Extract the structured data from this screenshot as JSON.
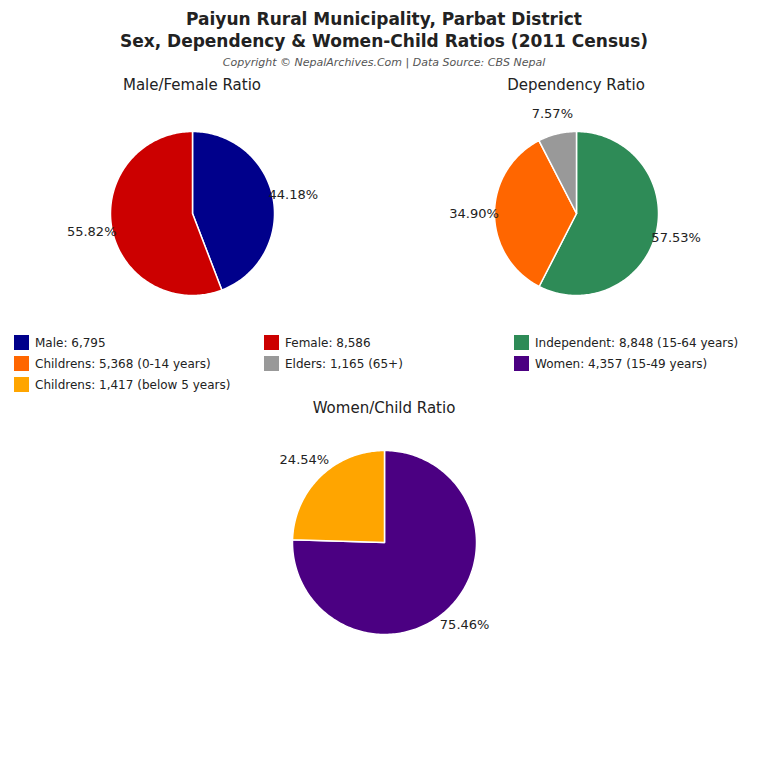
{
  "title": "Paiyun Rural Municipality, Parbat District\nSex, Dependency & Women-Child Ratios (2011 Census)",
  "subtitle": "Copyright © NepalArchives.Com | Data Source: CBS Nepal",
  "chart_data": [
    {
      "type": "pie",
      "title": "Male/Female Ratio",
      "categories": [
        "Male: 6,795",
        "Female: 8,586"
      ],
      "values": [
        44.18,
        55.82
      ],
      "value_labels": [
        "44.18%",
        "55.82%"
      ],
      "colors": [
        "#00008B",
        "#CC0000"
      ],
      "data_labels": true
    },
    {
      "type": "pie",
      "title": "Dependency Ratio",
      "categories": [
        "Independent: 8,848 (15-64 years)",
        "Childrens: 5,368 (0-14 years)",
        "Elders: 1,165 (65+)"
      ],
      "values": [
        57.53,
        34.9,
        7.57
      ],
      "value_labels": [
        "57.53%",
        "34.90%",
        "7.57%"
      ],
      "colors": [
        "#2E8B57",
        "#FF6600",
        "#999999"
      ],
      "data_labels": true
    },
    {
      "type": "pie",
      "title": "Women/Child Ratio",
      "categories": [
        "Women: 4,357 (15-49 years)",
        "Childrens: 1,417 (below 5 years)"
      ],
      "values": [
        75.46,
        24.54
      ],
      "value_labels": [
        "75.46%",
        "24.54%"
      ],
      "colors": [
        "#4B0082",
        "#FFA500"
      ],
      "data_labels": true
    }
  ]
}
